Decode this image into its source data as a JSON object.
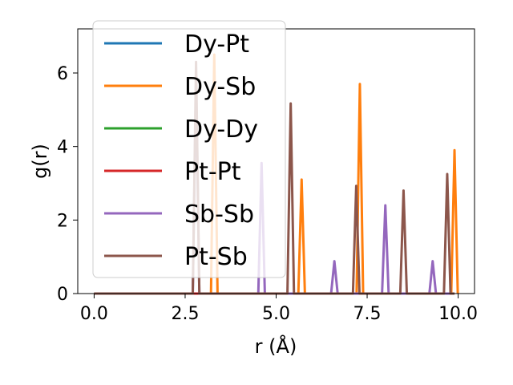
{
  "chart_data": {
    "type": "line",
    "title": "",
    "xlabel": "r (Å)",
    "ylabel": "g(r)",
    "xlim": [
      -0.45,
      10.45
    ],
    "ylim": [
      0,
      7.2
    ],
    "xticks": [
      0.0,
      2.5,
      5.0,
      7.5,
      10.0
    ],
    "xtick_labels": [
      "0.0",
      "2.5",
      "5.0",
      "7.5",
      "10.0"
    ],
    "yticks": [
      0,
      2,
      4,
      6
    ],
    "ytick_labels": [
      "0",
      "2",
      "4",
      "6"
    ],
    "grid": false,
    "legend_position": "upper-left",
    "peak_half_width": 0.09,
    "series": [
      {
        "name": "Dy-Pt",
        "color": "#1f77b4",
        "peaks": []
      },
      {
        "name": "Dy-Sb",
        "color": "#ff7f0e",
        "peaks": [
          [
            3.3,
            6.5
          ],
          [
            5.7,
            3.1
          ],
          [
            7.3,
            5.7
          ],
          [
            9.9,
            3.9
          ]
        ]
      },
      {
        "name": "Dy-Dy",
        "color": "#2ca02c",
        "peaks": []
      },
      {
        "name": "Pt-Pt",
        "color": "#d62728",
        "peaks": []
      },
      {
        "name": "Sb-Sb",
        "color": "#9467bd",
        "peaks": [
          [
            2.8,
            5.9
          ],
          [
            4.6,
            3.55
          ],
          [
            6.6,
            0.88
          ],
          [
            8.0,
            2.4
          ],
          [
            9.3,
            0.88
          ]
        ]
      },
      {
        "name": "Pt-Sb",
        "color": "#8c564b",
        "peaks": [
          [
            2.8,
            6.3
          ],
          [
            5.4,
            5.17
          ],
          [
            7.2,
            2.93
          ],
          [
            8.5,
            2.8
          ],
          [
            9.7,
            3.25
          ]
        ]
      }
    ]
  }
}
